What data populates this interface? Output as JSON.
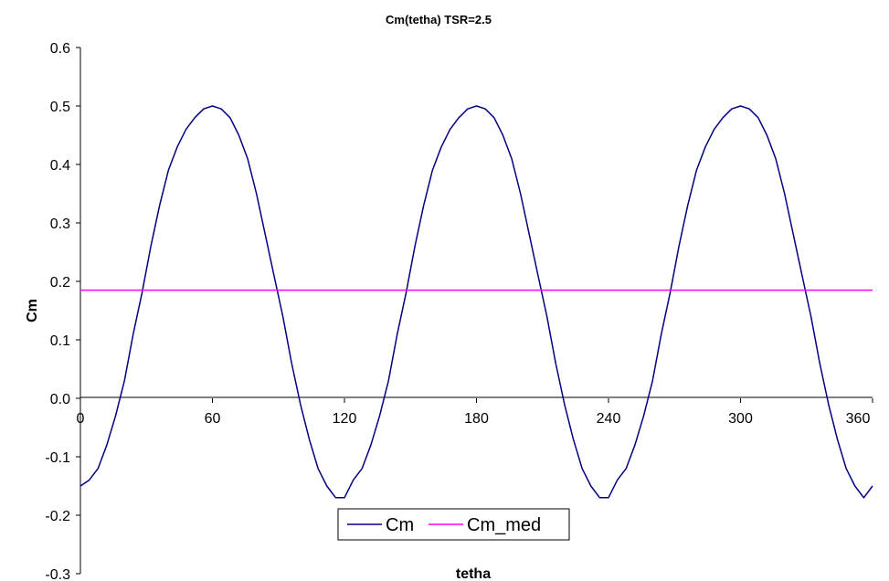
{
  "chart_data": {
    "type": "line",
    "title": "Cm(tetha) TSR=2.5",
    "xlabel": "tetha",
    "ylabel": "Cm",
    "xlim": [
      0,
      360
    ],
    "ylim": [
      -0.3,
      0.6
    ],
    "x_ticks": [
      "0",
      "60",
      "120",
      "180",
      "240",
      "300",
      "360"
    ],
    "y_ticks": [
      "0.6",
      "0.5",
      "0.4",
      "0.3",
      "0.2",
      "0.1",
      "0.0",
      "-0.1",
      "-0.2",
      "-0.3"
    ],
    "grid": false,
    "legend_position": "bottom-center",
    "series": [
      {
        "name": "Cm",
        "color": "#000080",
        "x": [
          0,
          4,
          8,
          12,
          16,
          20,
          24,
          28,
          32,
          36,
          40,
          44,
          48,
          52,
          56,
          60,
          64,
          68,
          72,
          76,
          80,
          84,
          88,
          92,
          96,
          100,
          104,
          108,
          112,
          116,
          120,
          124,
          128,
          132,
          136,
          140,
          144,
          148,
          152,
          156,
          160,
          164,
          168,
          172,
          176,
          180,
          184,
          188,
          192,
          196,
          200,
          204,
          208,
          212,
          216,
          220,
          224,
          228,
          232,
          236,
          240,
          244,
          248,
          252,
          256,
          260,
          264,
          268,
          272,
          276,
          280,
          284,
          288,
          292,
          296,
          300,
          304,
          308,
          312,
          316,
          320,
          324,
          328,
          332,
          336,
          340,
          344,
          348,
          352,
          356,
          360
        ],
        "values": [
          -0.15,
          -0.14,
          -0.12,
          -0.08,
          -0.03,
          0.03,
          0.11,
          0.18,
          0.26,
          0.33,
          0.39,
          0.43,
          0.46,
          0.48,
          0.495,
          0.5,
          0.495,
          0.48,
          0.45,
          0.41,
          0.35,
          0.28,
          0.21,
          0.14,
          0.06,
          -0.01,
          -0.07,
          -0.12,
          -0.15,
          -0.17,
          -0.17,
          -0.14,
          -0.12,
          -0.08,
          -0.03,
          0.03,
          0.11,
          0.18,
          0.26,
          0.33,
          0.39,
          0.43,
          0.46,
          0.48,
          0.495,
          0.5,
          0.495,
          0.48,
          0.45,
          0.41,
          0.35,
          0.28,
          0.21,
          0.14,
          0.06,
          -0.01,
          -0.07,
          -0.12,
          -0.15,
          -0.17,
          -0.17,
          -0.14,
          -0.12,
          -0.08,
          -0.03,
          0.03,
          0.11,
          0.18,
          0.26,
          0.33,
          0.39,
          0.43,
          0.46,
          0.48,
          0.495,
          0.5,
          0.495,
          0.48,
          0.45,
          0.41,
          0.35,
          0.28,
          0.21,
          0.14,
          0.06,
          -0.01,
          -0.07,
          -0.12,
          -0.15,
          -0.17,
          -0.15
        ]
      },
      {
        "name": "Cm_med",
        "color": "#ff00ff",
        "x": [
          0,
          360
        ],
        "values": [
          0.185,
          0.185
        ]
      }
    ]
  }
}
